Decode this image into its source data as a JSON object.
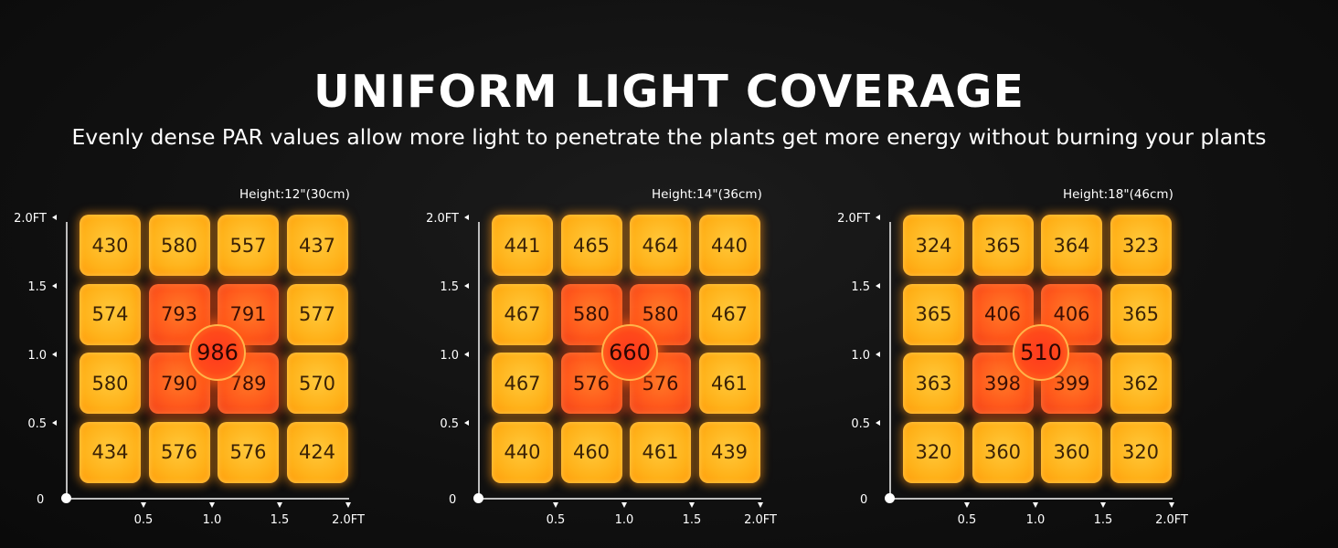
{
  "header": {
    "title": "UNIFORM LIGHT COVERAGE",
    "subtitle": "Evenly dense PAR values allow more light to penetrate the plants get more energy without burning your plants"
  },
  "axes": {
    "y_ticks": [
      "2.0FT",
      "1.5",
      "1.0",
      "0.5"
    ],
    "x_ticks": [
      "0.5",
      "1.0",
      "1.5",
      "2.0FT"
    ],
    "origin": "0"
  },
  "colors": {
    "cell": "#ffb21a",
    "cell_hot": "#ff5a1c",
    "center": "#ff3a1e",
    "background": "#111111"
  },
  "chart_data": [
    {
      "type": "heatmap",
      "height_label": "Height:12\"(30cm)",
      "grid": [
        [
          430,
          580,
          557,
          437
        ],
        [
          574,
          793,
          791,
          577
        ],
        [
          580,
          790,
          789,
          570
        ],
        [
          434,
          576,
          576,
          424
        ]
      ],
      "center_value": "986",
      "xlim": [
        0,
        2.0
      ],
      "ylim": [
        0,
        2.0
      ]
    },
    {
      "type": "heatmap",
      "height_label": "Height:14\"(36cm)",
      "grid": [
        [
          441,
          465,
          464,
          440
        ],
        [
          467,
          580,
          580,
          467
        ],
        [
          467,
          576,
          576,
          461
        ],
        [
          440,
          460,
          461,
          439
        ]
      ],
      "center_value": "660",
      "xlim": [
        0,
        2.0
      ],
      "ylim": [
        0,
        2.0
      ]
    },
    {
      "type": "heatmap",
      "height_label": "Height:18\"(46cm)",
      "grid": [
        [
          324,
          365,
          364,
          323
        ],
        [
          365,
          406,
          406,
          365
        ],
        [
          363,
          398,
          399,
          362
        ],
        [
          320,
          360,
          360,
          320
        ]
      ],
      "center_value": "510",
      "xlim": [
        0,
        2.0
      ],
      "ylim": [
        0,
        2.0
      ]
    }
  ]
}
